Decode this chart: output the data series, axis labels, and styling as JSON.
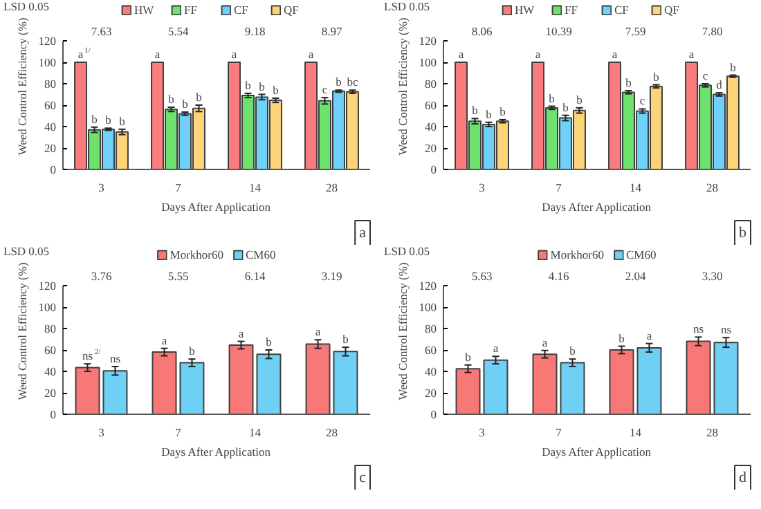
{
  "chart_data": [
    {
      "type": "bar",
      "xlabel": "Days After Application",
      "ylabel": "Weed Control Efficiency (%)",
      "categories": [
        "3",
        "7",
        "14",
        "28"
      ],
      "ylim": [
        0,
        120
      ],
      "yticks": [
        0,
        20,
        40,
        60,
        80,
        100,
        120
      ],
      "grid": false,
      "legend": "top",
      "annotations": [
        "LSD 0.05",
        "7.63",
        "5.54",
        "9.18",
        "8.97",
        "a$^{1/}$",
        "b",
        "b",
        "b",
        "a",
        "b",
        "b",
        "b",
        "a",
        "b",
        "b",
        "b",
        "a",
        "c",
        "b",
        "bc",
        "a"
      ],
      "series": [
        {
          "name": "HW",
          "color": "#fa7c7c",
          "values": [
            100,
            100,
            100,
            100
          ]
        },
        {
          "name": "FF",
          "color": "#6ee26e",
          "values": [
            37,
            56,
            69,
            64
          ],
          "errors": [
            2.5,
            2,
            2,
            3
          ]
        },
        {
          "name": "CF",
          "color": "#6fd0fa",
          "values": [
            37.5,
            52,
            67.5,
            73
          ],
          "errors": [
            1,
            1.5,
            2.5,
            1
          ]
        },
        {
          "name": "QF",
          "color": "#fdd477",
          "values": [
            35,
            57,
            64.5,
            72.5
          ],
          "errors": [
            2.5,
            3,
            2,
            1.5
          ]
        }
      ]
    },
    {
      "type": "bar",
      "xlabel": "Days After Application",
      "ylabel": "Weed Control Efficiency (%)",
      "categories": [
        "3",
        "7",
        "14",
        "28"
      ],
      "ylim": [
        0,
        120
      ],
      "yticks": [
        0,
        20,
        40,
        60,
        80,
        100,
        120
      ],
      "grid": false,
      "legend": "top",
      "annotations": [
        "LSD 0.05",
        "8.06",
        "10.39",
        "7.59",
        "7.80",
        "a",
        "b",
        "b",
        "b",
        "a",
        "b",
        "b",
        "b",
        "a",
        "b",
        "c",
        "b",
        "a",
        "c",
        "d",
        "b",
        "b"
      ],
      "series": [
        {
          "name": "HW",
          "color": "#fa7c7c",
          "values": [
            100,
            100,
            100,
            100
          ]
        },
        {
          "name": "FF",
          "color": "#6ee26e",
          "values": [
            45,
            57.5,
            72,
            78.5
          ],
          "errors": [
            2.5,
            1.5,
            1.5,
            1.5
          ]
        },
        {
          "name": "CF",
          "color": "#6fd0fa",
          "values": [
            42,
            48,
            54.5,
            70
          ],
          "errors": [
            2,
            2.5,
            2,
            1.5
          ]
        },
        {
          "name": "QF",
          "color": "#fdd477",
          "values": [
            45,
            55,
            77.5,
            87
          ],
          "errors": [
            1.5,
            2.5,
            1.5,
            1
          ]
        }
      ]
    },
    {
      "type": "bar",
      "xlabel": "Days After Application",
      "ylabel": "Weed Control Efficiency (%)",
      "categories": [
        "3",
        "7",
        "14",
        "28"
      ],
      "ylim": [
        0,
        120
      ],
      "yticks": [
        0,
        20,
        40,
        60,
        80,
        100,
        120
      ],
      "grid": false,
      "legend": "top",
      "annotations": [
        "LSD 0.05",
        "3.76",
        "5.55",
        "6.14",
        "3.19",
        "ns$^{2/}$",
        "ns",
        "a",
        "b",
        "a",
        "b",
        "a",
        "b",
        "c"
      ],
      "series": [
        {
          "name": "Morkhor60",
          "color": "#f87878",
          "values": [
            43.5,
            58,
            64.5,
            65.5
          ],
          "errors": [
            3.5,
            3.5,
            3.5,
            4
          ]
        },
        {
          "name": "CM60",
          "color": "#6fd0f5",
          "values": [
            40.5,
            48,
            56,
            58.5
          ],
          "errors": [
            4,
            3.5,
            4,
            4
          ]
        }
      ]
    },
    {
      "type": "bar",
      "xlabel": "Days After Application",
      "ylabel": "Weed Control Efficiency (%)",
      "categories": [
        "3",
        "7",
        "14",
        "28"
      ],
      "ylim": [
        0,
        120
      ],
      "yticks": [
        0,
        20,
        40,
        60,
        80,
        100,
        120
      ],
      "grid": false,
      "legend": "top",
      "annotations": [
        "LSD 0.05",
        "5.63",
        "4.16",
        "2.04",
        "3.30",
        "b",
        "a",
        "a",
        "b",
        "b",
        "a",
        "ns",
        "ns",
        "d"
      ],
      "series": [
        {
          "name": "Morkhor60",
          "color": "#f87878",
          "values": [
            42.5,
            56,
            60,
            68
          ],
          "errors": [
            3.5,
            3.5,
            3.5,
            4
          ]
        },
        {
          "name": "CM60",
          "color": "#6fd0f5",
          "values": [
            50.5,
            48,
            62,
            67
          ],
          "errors": [
            3.5,
            3.5,
            4,
            4.5
          ]
        }
      ]
    }
  ]
}
